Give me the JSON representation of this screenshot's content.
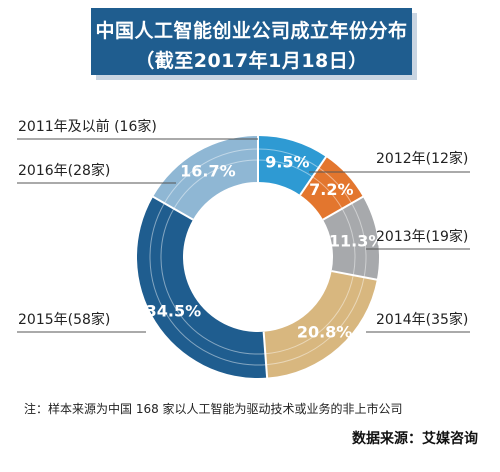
{
  "title": {
    "line1": "中国人工智能创业公司成立年份分布",
    "line2": "（截至2017年1月18日）"
  },
  "chart_data": {
    "type": "pie",
    "variant": "donut",
    "title": "中国人工智能创业公司成立年份分布",
    "subtitle": "（截至2017年1月18日）",
    "slices": [
      {
        "label": "2011年及以前 (16家)",
        "value": 9.5,
        "count": 16,
        "pct_label": "9.5%",
        "color": "#2e9ad3"
      },
      {
        "label": "2012年(12家)",
        "value": 7.2,
        "count": 12,
        "pct_label": "7.2%",
        "color": "#e3762e"
      },
      {
        "label": "2013年(19家)",
        "value": 11.3,
        "count": 19,
        "pct_label": "11.3%",
        "color": "#a7a9ac"
      },
      {
        "label": "2014年(35家)",
        "value": 20.8,
        "count": 35,
        "pct_label": "20.8%",
        "color": "#d8b77f"
      },
      {
        "label": "2015年(58家)",
        "value": 34.5,
        "count": 58,
        "pct_label": "34.5%",
        "color": "#1f5d8f"
      },
      {
        "label": "2016年(28家)",
        "value": 16.7,
        "count": 28,
        "pct_label": "16.7%",
        "color": "#8fb7d4"
      }
    ]
  },
  "footer": {
    "note": "注：样本来源为中国 168 家以人工智能为驱动技术或业务的非上市公司",
    "source": "数据来源：艾媒咨询"
  }
}
